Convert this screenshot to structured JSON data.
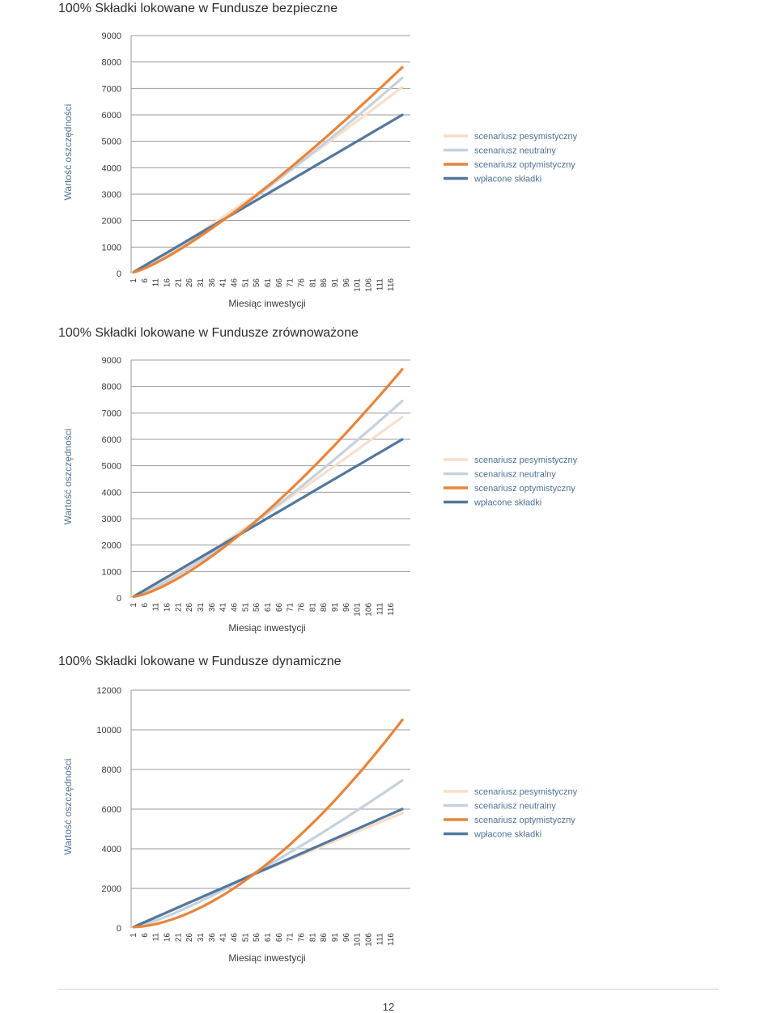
{
  "page_number": "12",
  "legend_colors": {
    "pessimistic": "#F8DECB",
    "neutral": "#C5D2DE",
    "optimistic": "#E8843A",
    "contributions": "#52779D"
  },
  "chart_data": [
    {
      "type": "line",
      "title": "100% Składki lokowane w Fundusze bezpieczne",
      "xlabel": "Miesiąc inwestycji",
      "ylabel": "Wartość oszczędności",
      "x_ticks": [
        "1",
        "6",
        "11",
        "16",
        "21",
        "26",
        "31",
        "36",
        "41",
        "46",
        "51",
        "56",
        "61",
        "66",
        "71",
        "76",
        "81",
        "86",
        "91",
        "96",
        "101",
        "106",
        "111",
        "116"
      ],
      "y_ticks": [
        0,
        1000,
        2000,
        3000,
        4000,
        5000,
        6000,
        7000,
        8000,
        9000
      ],
      "ylim": [
        0,
        9000
      ],
      "xlim": [
        1,
        121
      ],
      "legend_position": "right",
      "grid": "horizontal",
      "series": [
        {
          "name": "scenariusz pesymistyczny",
          "color": "#F8DECB",
          "x": [
            1,
            121
          ],
          "values": [
            50,
            7050
          ],
          "curve": 1.1
        },
        {
          "name": "scenariusz neutralny",
          "color": "#C5D2DE",
          "x": [
            1,
            121
          ],
          "values": [
            50,
            7400
          ],
          "curve": 1.2
        },
        {
          "name": "scenariusz optymistyczny",
          "color": "#E8843A",
          "x": [
            1,
            121
          ],
          "values": [
            50,
            7800
          ],
          "curve": 1.25
        },
        {
          "name": "wpłacone składki",
          "color": "#52779D",
          "x": [
            1,
            121
          ],
          "values": [
            50,
            6000
          ],
          "curve": 1.0
        }
      ]
    },
    {
      "type": "line",
      "title": "100% Składki lokowane w Fundusze zrównoważone",
      "xlabel": "Miesiąc inwestycji",
      "ylabel": "Wartość oszczędności",
      "x_ticks": [
        "1",
        "6",
        "11",
        "16",
        "21",
        "26",
        "31",
        "36",
        "41",
        "46",
        "51",
        "56",
        "61",
        "66",
        "71",
        "76",
        "81",
        "86",
        "91",
        "96",
        "101",
        "106",
        "111",
        "116"
      ],
      "y_ticks": [
        0,
        1000,
        2000,
        3000,
        4000,
        5000,
        6000,
        7000,
        8000,
        9000
      ],
      "ylim": [
        0,
        9000
      ],
      "xlim": [
        1,
        121
      ],
      "legend_position": "right",
      "grid": "horizontal",
      "series": [
        {
          "name": "scenariusz pesymistyczny",
          "color": "#F8DECB",
          "x": [
            1,
            121
          ],
          "values": [
            50,
            6850
          ],
          "curve": 1.1
        },
        {
          "name": "scenariusz neutralny",
          "color": "#C5D2DE",
          "x": [
            1,
            121
          ],
          "values": [
            50,
            7450
          ],
          "curve": 1.22
        },
        {
          "name": "scenariusz optymistyczny",
          "color": "#E8843A",
          "x": [
            1,
            121
          ],
          "values": [
            50,
            8650
          ],
          "curve": 1.4
        },
        {
          "name": "wpłacone składki",
          "color": "#52779D",
          "x": [
            1,
            121
          ],
          "values": [
            50,
            6000
          ],
          "curve": 1.0
        }
      ]
    },
    {
      "type": "line",
      "title": "100% Składki lokowane w Fundusze dynamiczne",
      "xlabel": "Miesiąc inwestycji",
      "ylabel": "Wartość oszczędności",
      "x_ticks": [
        "1",
        "6",
        "11",
        "16",
        "21",
        "26",
        "31",
        "36",
        "41",
        "46",
        "51",
        "56",
        "61",
        "66",
        "71",
        "76",
        "81",
        "86",
        "91",
        "96",
        "101",
        "106",
        "111",
        "116"
      ],
      "y_ticks": [
        0,
        2000,
        4000,
        6000,
        8000,
        10000,
        12000
      ],
      "ylim": [
        0,
        12000
      ],
      "xlim": [
        1,
        121
      ],
      "legend_position": "right",
      "grid": "horizontal",
      "series": [
        {
          "name": "scenariusz pesymistyczny",
          "color": "#F8DECB",
          "x": [
            1,
            121
          ],
          "values": [
            50,
            5800
          ],
          "curve": 0.97
        },
        {
          "name": "scenariusz neutralny",
          "color": "#C5D2DE",
          "x": [
            1,
            121
          ],
          "values": [
            50,
            7450
          ],
          "curve": 1.25
        },
        {
          "name": "scenariusz optymistyczny",
          "color": "#E8843A",
          "x": [
            1,
            121
          ],
          "values": [
            50,
            10500
          ],
          "curve": 1.7
        },
        {
          "name": "wpłacone składki",
          "color": "#52779D",
          "x": [
            1,
            121
          ],
          "values": [
            50,
            6000
          ],
          "curve": 1.0
        }
      ]
    }
  ]
}
